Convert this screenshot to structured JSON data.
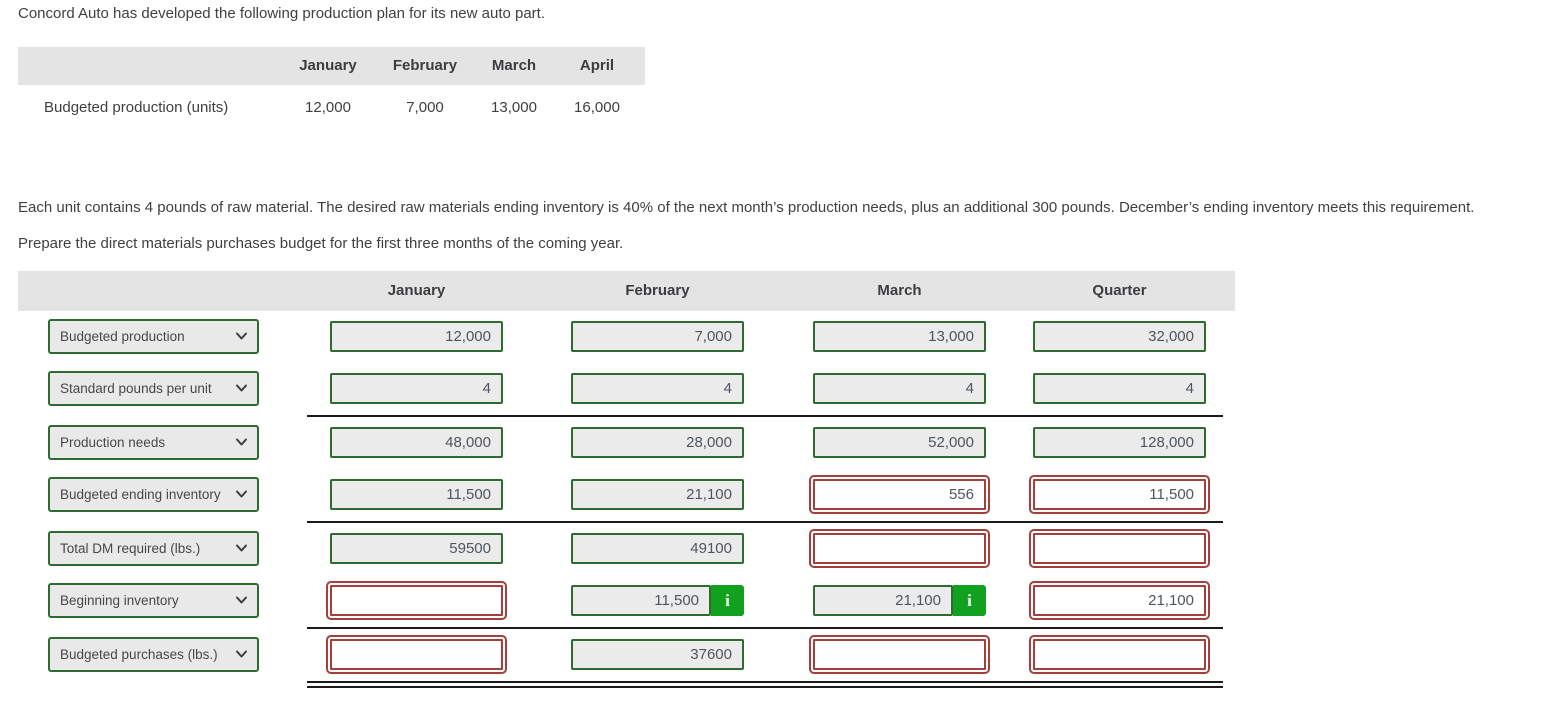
{
  "intro": "Concord Auto has developed the following production plan for its new auto part.",
  "production_plan": {
    "columns": [
      "January",
      "February",
      "March",
      "April"
    ],
    "row_label": "Budgeted production (units)",
    "values": [
      "12,000",
      "7,000",
      "13,000",
      "16,000"
    ]
  },
  "problem_text": "Each unit contains 4 pounds of raw material. The desired raw materials ending inventory is 40% of the next month’s production needs, plus an additional 300 pounds. December’s ending inventory meets this requirement.",
  "task_text": "Prepare the direct materials purchases budget for the first three months of the coming year.",
  "budget_table": {
    "columns": [
      "January",
      "February",
      "March",
      "Quarter"
    ],
    "rows": [
      {
        "label": "Budgeted production",
        "line_after": "none",
        "cells": [
          {
            "type": "filled",
            "value": "12,000"
          },
          {
            "type": "filled",
            "value": "7,000"
          },
          {
            "type": "filled",
            "value": "13,000"
          },
          {
            "type": "filled",
            "value": "32,000"
          }
        ]
      },
      {
        "label": "Standard pounds per unit",
        "line_after": "single",
        "cells": [
          {
            "type": "filled",
            "value": "4"
          },
          {
            "type": "filled",
            "value": "4"
          },
          {
            "type": "filled",
            "value": "4"
          },
          {
            "type": "filled",
            "value": "4"
          }
        ]
      },
      {
        "label": "Production needs",
        "line_after": "none",
        "cells": [
          {
            "type": "filled",
            "value": "48,000"
          },
          {
            "type": "filled",
            "value": "28,000"
          },
          {
            "type": "filled",
            "value": "52,000"
          },
          {
            "type": "filled",
            "value": "128,000"
          }
        ]
      },
      {
        "label": "Budgeted ending inventory",
        "line_after": "single",
        "cells": [
          {
            "type": "filled",
            "value": "11,500"
          },
          {
            "type": "filled",
            "value": "21,100"
          },
          {
            "type": "error",
            "value": "556"
          },
          {
            "type": "error",
            "value": "11,500"
          }
        ]
      },
      {
        "label": "Total DM required (lbs.)",
        "line_after": "none",
        "cells": [
          {
            "type": "filled",
            "value": "59500"
          },
          {
            "type": "filled",
            "value": "49100"
          },
          {
            "type": "error",
            "value": ""
          },
          {
            "type": "error",
            "value": ""
          }
        ]
      },
      {
        "label": "Beginning inventory",
        "line_after": "single",
        "cells": [
          {
            "type": "error",
            "value": ""
          },
          {
            "type": "filled-info",
            "value": "11,500"
          },
          {
            "type": "filled-info",
            "value": "21,100"
          },
          {
            "type": "error",
            "value": "21,100"
          }
        ]
      },
      {
        "label": "Budgeted purchases (lbs.)",
        "line_after": "double",
        "cells": [
          {
            "type": "error",
            "value": ""
          },
          {
            "type": "filled",
            "value": "37600"
          },
          {
            "type": "error",
            "value": ""
          },
          {
            "type": "error",
            "value": ""
          }
        ]
      }
    ]
  },
  "icons": {
    "info_icon": "i",
    "chevron_down_icon": "⌄"
  },
  "colors": {
    "accent_green": "#2e6b31",
    "error_red": "#a43f3b",
    "info_badge_green": "#12a01f",
    "header_gray": "#e4e4e4",
    "field_gray": "#ebebeb",
    "line_black": "#1b1b1b"
  }
}
